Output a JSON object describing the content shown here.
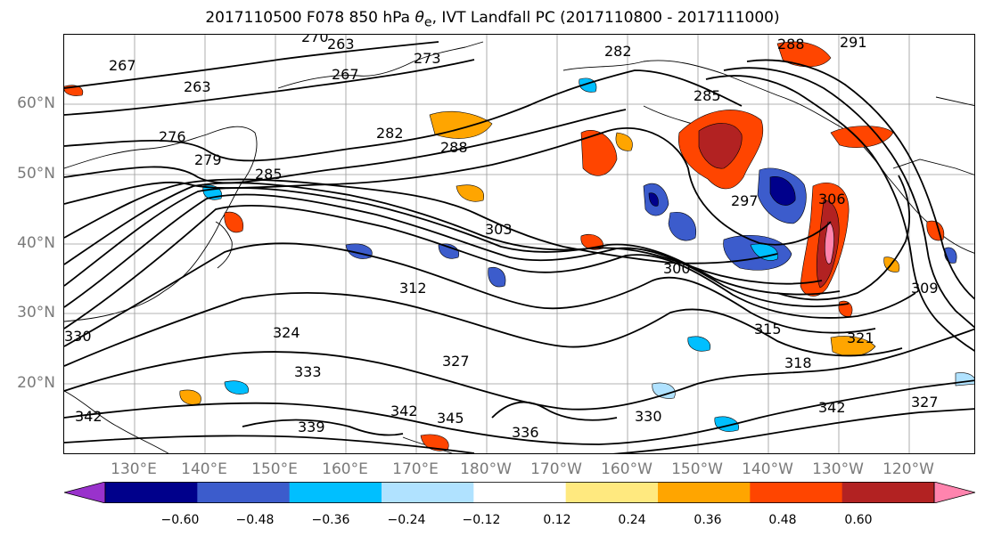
{
  "title": {
    "prefix": "2017110500 F078 850 hPa ",
    "symbol": "θ",
    "subscript": "e",
    "suffix": ", IVT Landfall PC (2017110800 - 2017111000)"
  },
  "axes": {
    "lat_ticks": [
      "60°N",
      "50°N",
      "40°N",
      "30°N",
      "20°N"
    ],
    "lon_ticks": [
      "130°E",
      "140°E",
      "150°E",
      "160°E",
      "170°E",
      "180°W",
      "170°W",
      "160°W",
      "150°W",
      "140°W",
      "130°W",
      "120°W"
    ]
  },
  "contour_labels": [
    "270",
    "267",
    "263",
    "267",
    "263",
    "273",
    "282",
    "288",
    "276",
    "279",
    "285",
    "282",
    "288",
    "285",
    "291",
    "303",
    "297",
    "306",
    "300",
    "312",
    "309",
    "315",
    "318",
    "321",
    "324",
    "333",
    "327",
    "330",
    "336",
    "339",
    "342",
    "345",
    "342",
    "342",
    "327",
    "330"
  ],
  "colorbar": {
    "tick_labels": [
      "−0.60",
      "−0.48",
      "−0.36",
      "−0.24",
      "−0.12",
      "0.12",
      "0.24",
      "0.36",
      "0.48",
      "0.60"
    ],
    "colors": [
      "#9932cc",
      "#00008b",
      "#3c5ccc",
      "#00bfff",
      "#b0e2ff",
      "#ffffff",
      "#ffe97f",
      "#ffa500",
      "#ff4500",
      "#b22222",
      "#ff84ae"
    ]
  }
}
